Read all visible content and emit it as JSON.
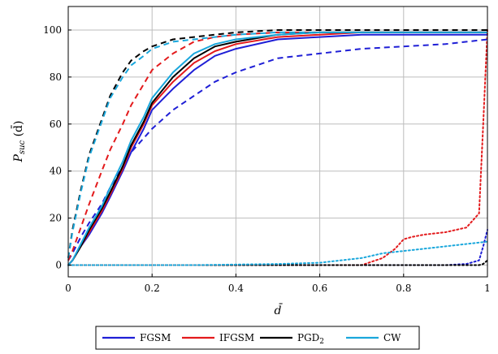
{
  "chart_data": {
    "type": "line",
    "xlabel": "d̄",
    "ylabel_main": "P",
    "ylabel_sub": "suc",
    "ylabel_tail": " (d̄)",
    "xlim": [
      0,
      1
    ],
    "ylim": [
      -5,
      110
    ],
    "xticks": [
      0,
      0.2,
      0.4,
      0.6,
      0.8,
      1
    ],
    "xtick_labels": [
      "0",
      "0.2",
      "0.4",
      "0.6",
      "0.8",
      "1"
    ],
    "yticks": [
      0,
      20,
      40,
      60,
      80,
      100
    ],
    "ytick_labels": [
      "0",
      "20",
      "40",
      "60",
      "80",
      "100"
    ],
    "grid": true,
    "legend_position": "bottom",
    "legend": [
      {
        "label": "FGSM",
        "color": "#1f1fd6"
      },
      {
        "label": "IFGSM",
        "color": "#e31a1c"
      },
      {
        "label": "PGD",
        "sub": "2",
        "color": "#000000"
      },
      {
        "label": "CW",
        "color": "#1aa7dc"
      }
    ],
    "series": [
      {
        "method": "FGSM",
        "style": "solid",
        "color": "#1f1fd6",
        "x": [
          0,
          0.01,
          0.03,
          0.05,
          0.08,
          0.1,
          0.13,
          0.15,
          0.18,
          0.2,
          0.25,
          0.3,
          0.35,
          0.4,
          0.5,
          0.6,
          0.7,
          0.8,
          0.9,
          1
        ],
        "y": [
          0,
          2,
          8,
          13,
          22,
          29,
          40,
          48,
          58,
          66,
          75,
          83,
          89,
          92,
          96,
          97,
          98,
          98,
          98,
          98
        ]
      },
      {
        "method": "FGSM",
        "style": "dashed",
        "color": "#1f1fd6",
        "x": [
          0,
          0.01,
          0.03,
          0.05,
          0.08,
          0.1,
          0.13,
          0.15,
          0.18,
          0.2,
          0.25,
          0.3,
          0.35,
          0.4,
          0.5,
          0.6,
          0.7,
          0.8,
          0.9,
          1
        ],
        "y": [
          2,
          5,
          12,
          18,
          26,
          33,
          42,
          48,
          54,
          58,
          66,
          72,
          78,
          82,
          88,
          90,
          92,
          93,
          94,
          96
        ]
      },
      {
        "method": "FGSM",
        "style": "dotted",
        "color": "#1f1fd6",
        "x": [
          0,
          0.5,
          0.9,
          0.95,
          0.98,
          0.99,
          1
        ],
        "y": [
          0,
          0,
          0,
          0.5,
          2,
          8,
          15
        ]
      },
      {
        "method": "IFGSM",
        "style": "solid",
        "color": "#e31a1c",
        "x": [
          0,
          0.01,
          0.03,
          0.05,
          0.08,
          0.1,
          0.13,
          0.15,
          0.18,
          0.2,
          0.25,
          0.3,
          0.35,
          0.4,
          0.5,
          0.6,
          0.7,
          0.8,
          0.9,
          1
        ],
        "y": [
          0,
          2,
          8,
          14,
          23,
          30,
          41,
          50,
          60,
          68,
          78,
          86,
          91,
          94,
          97,
          98,
          99,
          99,
          99,
          99
        ]
      },
      {
        "method": "IFGSM",
        "style": "dashed",
        "color": "#e31a1c",
        "x": [
          0,
          0.01,
          0.03,
          0.05,
          0.08,
          0.1,
          0.13,
          0.15,
          0.18,
          0.2,
          0.25,
          0.3,
          0.35,
          0.4,
          0.5,
          0.6,
          0.7,
          0.8,
          0.9,
          1
        ],
        "y": [
          2,
          6,
          16,
          26,
          40,
          49,
          60,
          68,
          77,
          83,
          90,
          95,
          97,
          98,
          99,
          99,
          99,
          99,
          99,
          99
        ]
      },
      {
        "method": "IFGSM",
        "style": "dotted",
        "color": "#e31a1c",
        "x": [
          0,
          0.6,
          0.7,
          0.75,
          0.78,
          0.8,
          0.82,
          0.85,
          0.9,
          0.95,
          0.98,
          0.99,
          1
        ],
        "y": [
          0,
          0,
          0,
          3,
          7,
          11,
          12,
          13,
          14,
          16,
          22,
          60,
          100
        ]
      },
      {
        "method": "PGD",
        "style": "solid",
        "color": "#000000",
        "x": [
          0,
          0.01,
          0.03,
          0.05,
          0.08,
          0.1,
          0.13,
          0.15,
          0.18,
          0.2,
          0.25,
          0.3,
          0.35,
          0.4,
          0.5,
          0.6,
          0.7,
          0.8,
          0.9,
          1
        ],
        "y": [
          0,
          2,
          8,
          15,
          24,
          31,
          42,
          51,
          61,
          69,
          80,
          88,
          93,
          95,
          98,
          99,
          99,
          99,
          99,
          99
        ]
      },
      {
        "method": "PGD",
        "style": "dashed",
        "color": "#000000",
        "x": [
          0,
          0.01,
          0.03,
          0.05,
          0.08,
          0.1,
          0.13,
          0.15,
          0.18,
          0.2,
          0.25,
          0.3,
          0.35,
          0.4,
          0.5,
          0.6,
          0.7,
          0.8,
          0.9,
          1
        ],
        "y": [
          3,
          15,
          32,
          47,
          62,
          72,
          82,
          87,
          91,
          93,
          96,
          97,
          98,
          99,
          100,
          100,
          100,
          100,
          100,
          100
        ]
      },
      {
        "method": "PGD",
        "style": "dotted",
        "color": "#000000",
        "x": [
          0,
          0.5,
          0.9,
          0.95,
          0.98,
          0.99,
          1
        ],
        "y": [
          0,
          0,
          0,
          0,
          0,
          0.5,
          2
        ]
      },
      {
        "method": "CW",
        "style": "solid",
        "color": "#1aa7dc",
        "x": [
          0,
          0.01,
          0.03,
          0.05,
          0.08,
          0.1,
          0.13,
          0.15,
          0.18,
          0.2,
          0.25,
          0.3,
          0.35,
          0.4,
          0.5,
          0.6,
          0.7,
          0.8,
          0.9,
          1
        ],
        "y": [
          0,
          2,
          9,
          16,
          25,
          33,
          44,
          53,
          63,
          71,
          82,
          90,
          94,
          96,
          98,
          99,
          99,
          99,
          99,
          99
        ]
      },
      {
        "method": "CW",
        "style": "dashed",
        "color": "#1aa7dc",
        "x": [
          0,
          0.01,
          0.03,
          0.05,
          0.08,
          0.1,
          0.13,
          0.15,
          0.18,
          0.2,
          0.25,
          0.3,
          0.35,
          0.4,
          0.5,
          0.6,
          0.7,
          0.8,
          0.9,
          1
        ],
        "y": [
          3,
          14,
          31,
          46,
          61,
          71,
          80,
          85,
          89,
          92,
          95,
          96,
          97,
          98,
          99,
          99,
          99,
          99,
          99,
          99
        ]
      },
      {
        "method": "CW",
        "style": "dotted",
        "color": "#1aa7dc",
        "x": [
          0,
          0.3,
          0.5,
          0.6,
          0.7,
          0.75,
          0.8,
          0.85,
          0.9,
          0.95,
          1
        ],
        "y": [
          0,
          0,
          0.5,
          1,
          3,
          5,
          6,
          7,
          8,
          9,
          10
        ]
      }
    ]
  }
}
